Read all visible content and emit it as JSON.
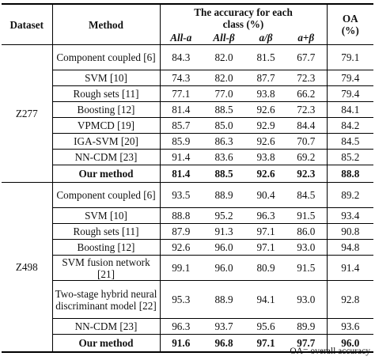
{
  "headers": {
    "dataset": "Dataset",
    "method": "Method",
    "accuracy_group": "The accuracy for each class (%)",
    "oa": "OA (%)",
    "sub": [
      "All-a",
      "All-β",
      "a/β",
      "a+β"
    ]
  },
  "groups": [
    {
      "dataset": "Z277",
      "rows": [
        {
          "method": "Component coupled [6]",
          "v": [
            "84.3",
            "82.0",
            "81.5",
            "67.7",
            "79.1"
          ],
          "bold": false
        },
        {
          "method": "SVM [10]",
          "v": [
            "74.3",
            "82.0",
            "87.7",
            "72.3",
            "79.4"
          ],
          "bold": false
        },
        {
          "method": "Rough sets [11]",
          "v": [
            "77.1",
            "77.0",
            "93.8",
            "66.2",
            "79.4"
          ],
          "bold": false
        },
        {
          "method": "Boosting [12]",
          "v": [
            "81.4",
            "88.5",
            "92.6",
            "72.3",
            "84.1"
          ],
          "bold": false
        },
        {
          "method": "VPMCD [19]",
          "v": [
            "85.7",
            "85.0",
            "92.9",
            "84.4",
            "84.2"
          ],
          "bold": false
        },
        {
          "method": "IGA-SVM [20]",
          "v": [
            "85.9",
            "86.3",
            "92.6",
            "70.7",
            "84.5"
          ],
          "bold": false
        },
        {
          "method": "NN-CDM [23]",
          "v": [
            "91.4",
            "83.6",
            "93.8",
            "69.2",
            "85.2"
          ],
          "bold": false
        },
        {
          "method": "Our method",
          "v": [
            "81.4",
            "88.5",
            "92.6",
            "92.3",
            "88.8"
          ],
          "bold": true
        }
      ]
    },
    {
      "dataset": "Z498",
      "rows": [
        {
          "method": "Component coupled [6]",
          "v": [
            "93.5",
            "88.9",
            "90.4",
            "84.5",
            "89.2"
          ],
          "bold": false
        },
        {
          "method": "SVM [10]",
          "v": [
            "88.8",
            "95.2",
            "96.3",
            "91.5",
            "93.4"
          ],
          "bold": false
        },
        {
          "method": "Rough sets [11]",
          "v": [
            "87.9",
            "91.3",
            "97.1",
            "86.0",
            "90.8"
          ],
          "bold": false
        },
        {
          "method": "Boosting [12]",
          "v": [
            "92.6",
            "96.0",
            "97.1",
            "93.0",
            "94.8"
          ],
          "bold": false
        },
        {
          "method": "SVM fusion network [21]",
          "v": [
            "99.1",
            "96.0",
            "80.9",
            "91.5",
            "91.4"
          ],
          "bold": false
        },
        {
          "method": "Two-stage hybrid neural discriminant model [22]",
          "v": [
            "95.3",
            "88.9",
            "94.1",
            "93.0",
            "92.8"
          ],
          "bold": false
        },
        {
          "method": "NN-CDM [23]",
          "v": [
            "96.3",
            "93.7",
            "95.6",
            "89.9",
            "93.6"
          ],
          "bold": false
        },
        {
          "method": "Our method",
          "v": [
            "91.6",
            "96.8",
            "97.1",
            "97.7",
            "96.0"
          ],
          "bold": true
        }
      ]
    }
  ],
  "footnote": "OA= overall accuracy"
}
